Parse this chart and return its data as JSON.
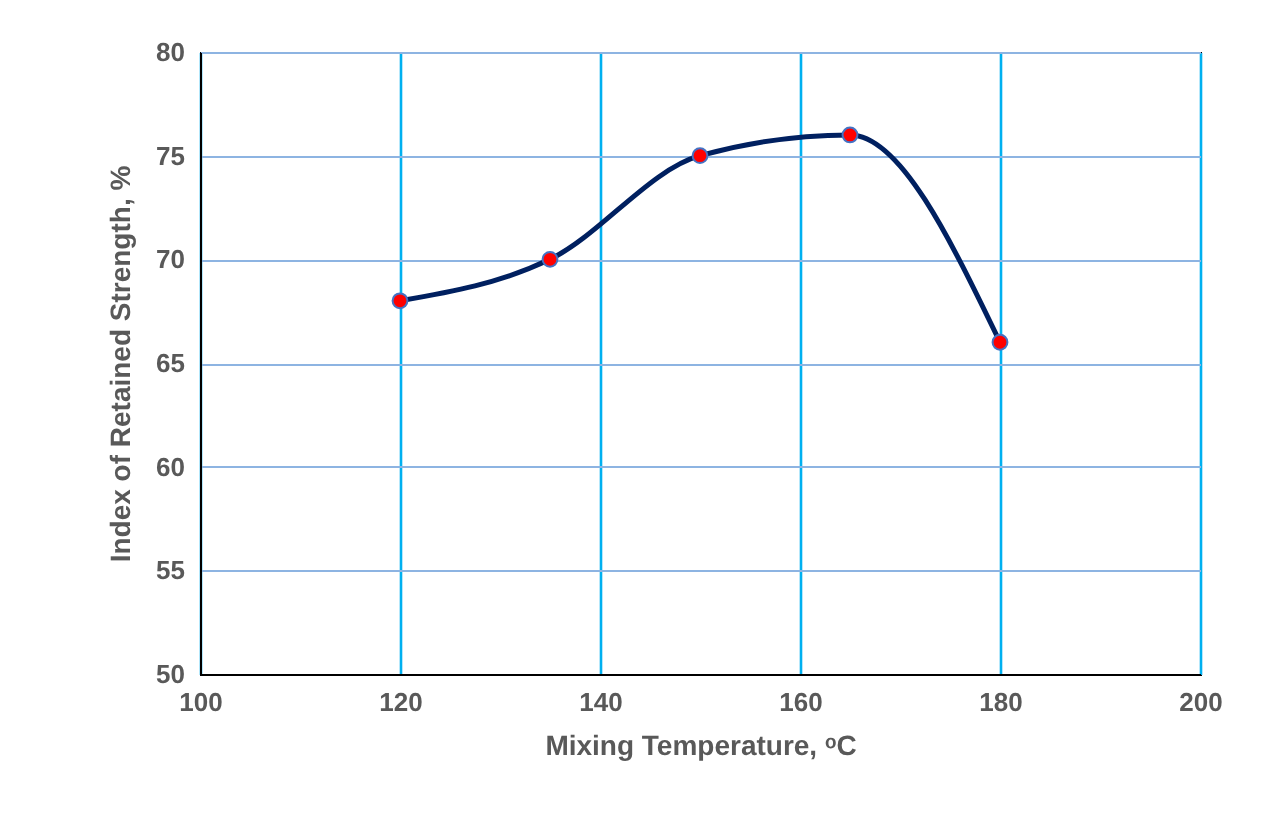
{
  "chart_data": {
    "type": "line",
    "xlabel": "Mixing Temperature, ᵒC",
    "ylabel": "Index of Retained Strength, %",
    "x": [
      120,
      135,
      150,
      165,
      180
    ],
    "series": [
      {
        "color": "#002060",
        "colors": [
          "#ff0000",
          "#ff0000",
          "#ff0000",
          "#ff0000",
          "#ff0000"
        ],
        "values": [
          68,
          70,
          75,
          76,
          66
        ]
      }
    ],
    "xlim": [
      100,
      200
    ],
    "xticks": [
      100,
      120,
      140,
      160,
      180,
      200
    ],
    "ylim": [
      50,
      80
    ],
    "yticks": [
      50,
      55,
      60,
      65,
      70,
      75,
      80
    ],
    "grid": true,
    "marker": "circle",
    "line_style": "solid"
  }
}
